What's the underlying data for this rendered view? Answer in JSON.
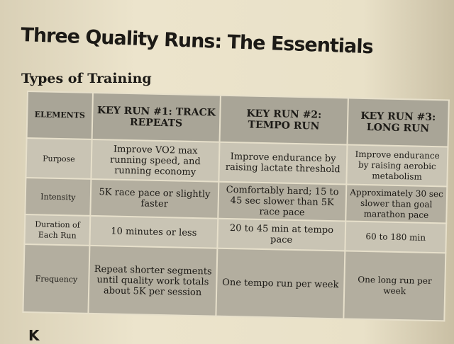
{
  "title": "Three Quality Runs: The Essentials",
  "subtitle": "Types of Training",
  "table": {
    "headers": [
      "ELEMENTS",
      "KEY RUN #1: TRACK REPEATS",
      "KEY RUN #2: TEMPO RUN",
      "KEY RUN #3: LONG RUN"
    ],
    "rows": [
      [
        "Purpose",
        "Improve VO2 max running speed, and running economy",
        "Improve endurance by raising lactate threshold",
        "Improve endurance by raising aerobic metabolism"
      ],
      [
        "Intensity",
        "5K race pace or slightly faster",
        "Comfortably hard; 15 to 45 sec slower than 5K race pace",
        "Approximately 30 sec slower than goal marathon pace"
      ],
      [
        "Duration of Each Run",
        "10 minutes or less",
        "20 to 45 min at tempo pace",
        "60 to 180 min"
      ],
      [
        "Frequency",
        "Repeat shorter segments until quality work totals about 5K per session",
        "One tempo run per week",
        "One long run per week"
      ]
    ]
  },
  "footer_fragment": "K"
}
